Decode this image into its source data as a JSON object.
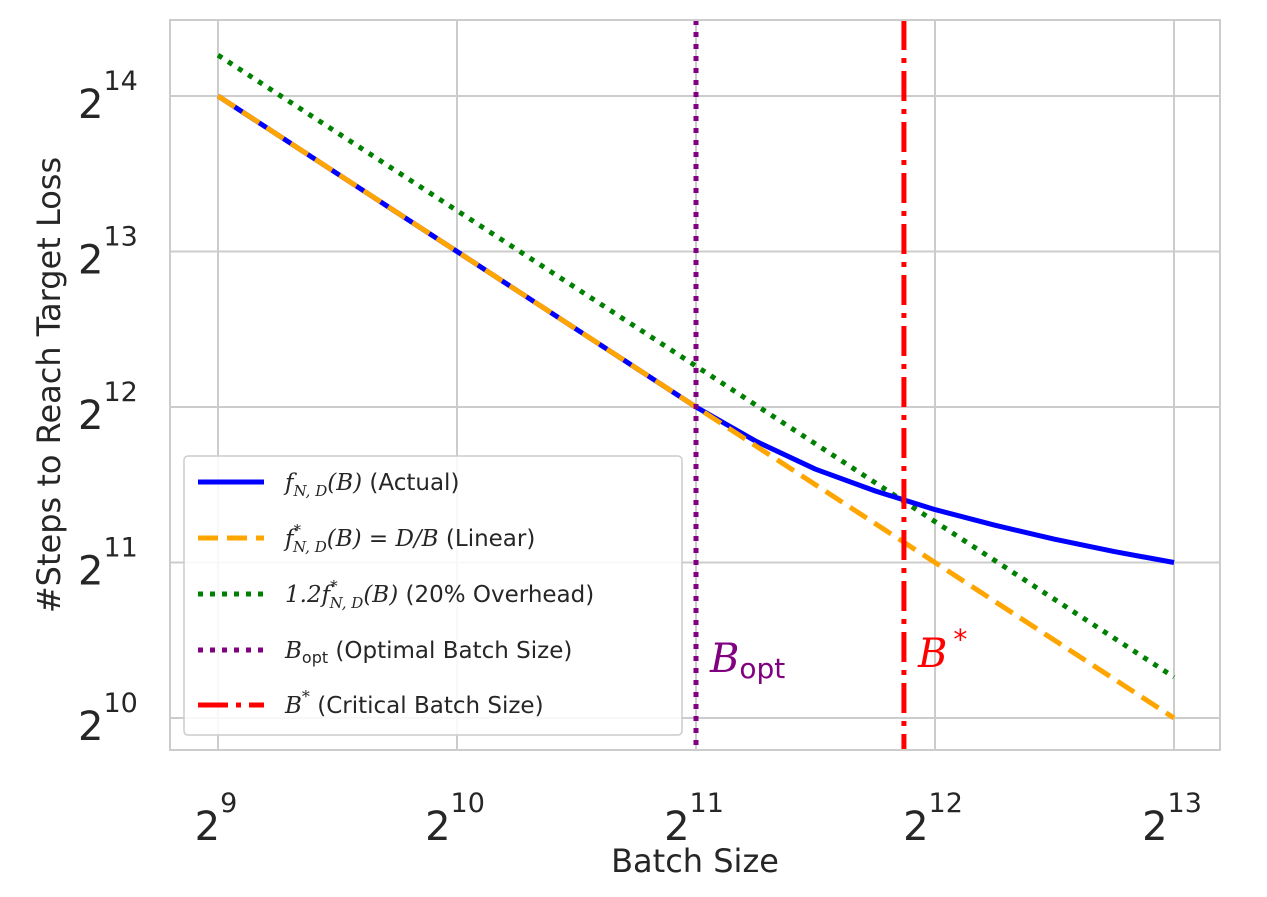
{
  "chart_data": {
    "type": "line",
    "x_scale": "log2",
    "y_scale": "log2",
    "xlabel": "Batch Size",
    "ylabel": "#Steps to Reach Target Loss",
    "xlim_log2": [
      8.8,
      13.2
    ],
    "ylim_log2": [
      9.8,
      14.5
    ],
    "x_ticks": [
      {
        "base": "2",
        "exp": "9",
        "log2": 9
      },
      {
        "base": "2",
        "exp": "10",
        "log2": 10
      },
      {
        "base": "2",
        "exp": "11",
        "log2": 11
      },
      {
        "base": "2",
        "exp": "12",
        "log2": 12
      },
      {
        "base": "2",
        "exp": "13",
        "log2": 13
      }
    ],
    "y_ticks": [
      {
        "base": "2",
        "exp": "10",
        "log2": 10
      },
      {
        "base": "2",
        "exp": "11",
        "log2": 11
      },
      {
        "base": "2",
        "exp": "12",
        "log2": 12
      },
      {
        "base": "2",
        "exp": "13",
        "log2": 13
      },
      {
        "base": "2",
        "exp": "14",
        "log2": 14
      }
    ],
    "series": [
      {
        "name": "actual",
        "color": "#0000ff",
        "style": "solid",
        "x_log2": [
          9,
          9.5,
          10,
          10.5,
          11,
          11.25,
          11.5,
          11.75,
          12,
          12.25,
          12.5,
          12.75,
          13
        ],
        "y_log2": [
          14,
          13.5,
          13,
          12.5,
          12,
          11.78,
          11.6,
          11.46,
          11.34,
          11.24,
          11.15,
          11.07,
          11.0
        ]
      },
      {
        "name": "linear",
        "color": "#ffa500",
        "style": "dashed",
        "x_log2": [
          9,
          13
        ],
        "y_log2": [
          14,
          10
        ]
      },
      {
        "name": "overhead",
        "color": "#008000",
        "style": "dotted",
        "x_log2": [
          9,
          13
        ],
        "y_log2": [
          14.263,
          10.263
        ]
      }
    ],
    "vlines": [
      {
        "name": "b-opt",
        "x_log2": 11.0,
        "color": "#800080",
        "style": "dotted"
      },
      {
        "name": "b-star",
        "x_log2": 11.87,
        "color": "#ff0000",
        "style": "dashdot"
      }
    ],
    "annotations": {
      "b_opt": {
        "main": "B",
        "sub": "opt",
        "color": "#800080"
      },
      "b_star": {
        "main": "B",
        "sup": "*",
        "color": "#ff0000"
      }
    },
    "legend": {
      "position": "lower-left",
      "entries": [
        {
          "math": "f",
          "sub": "N, D",
          "tail": "(B)",
          "text": " (Actual)"
        },
        {
          "math": "f",
          "sup": "*",
          "sub": "N, D",
          "tail": "(B) = D/B",
          "text": " (Linear)"
        },
        {
          "lead": "1.2",
          "math": "f",
          "sup": "*",
          "sub": "N, D",
          "tail": "(B)",
          "text": " (20% Overhead)"
        },
        {
          "math": "B",
          "sub": "opt",
          "text": " (Optimal Batch Size)"
        },
        {
          "math": "B",
          "sup": "*",
          "text": " (Critical Batch Size)"
        }
      ]
    }
  }
}
